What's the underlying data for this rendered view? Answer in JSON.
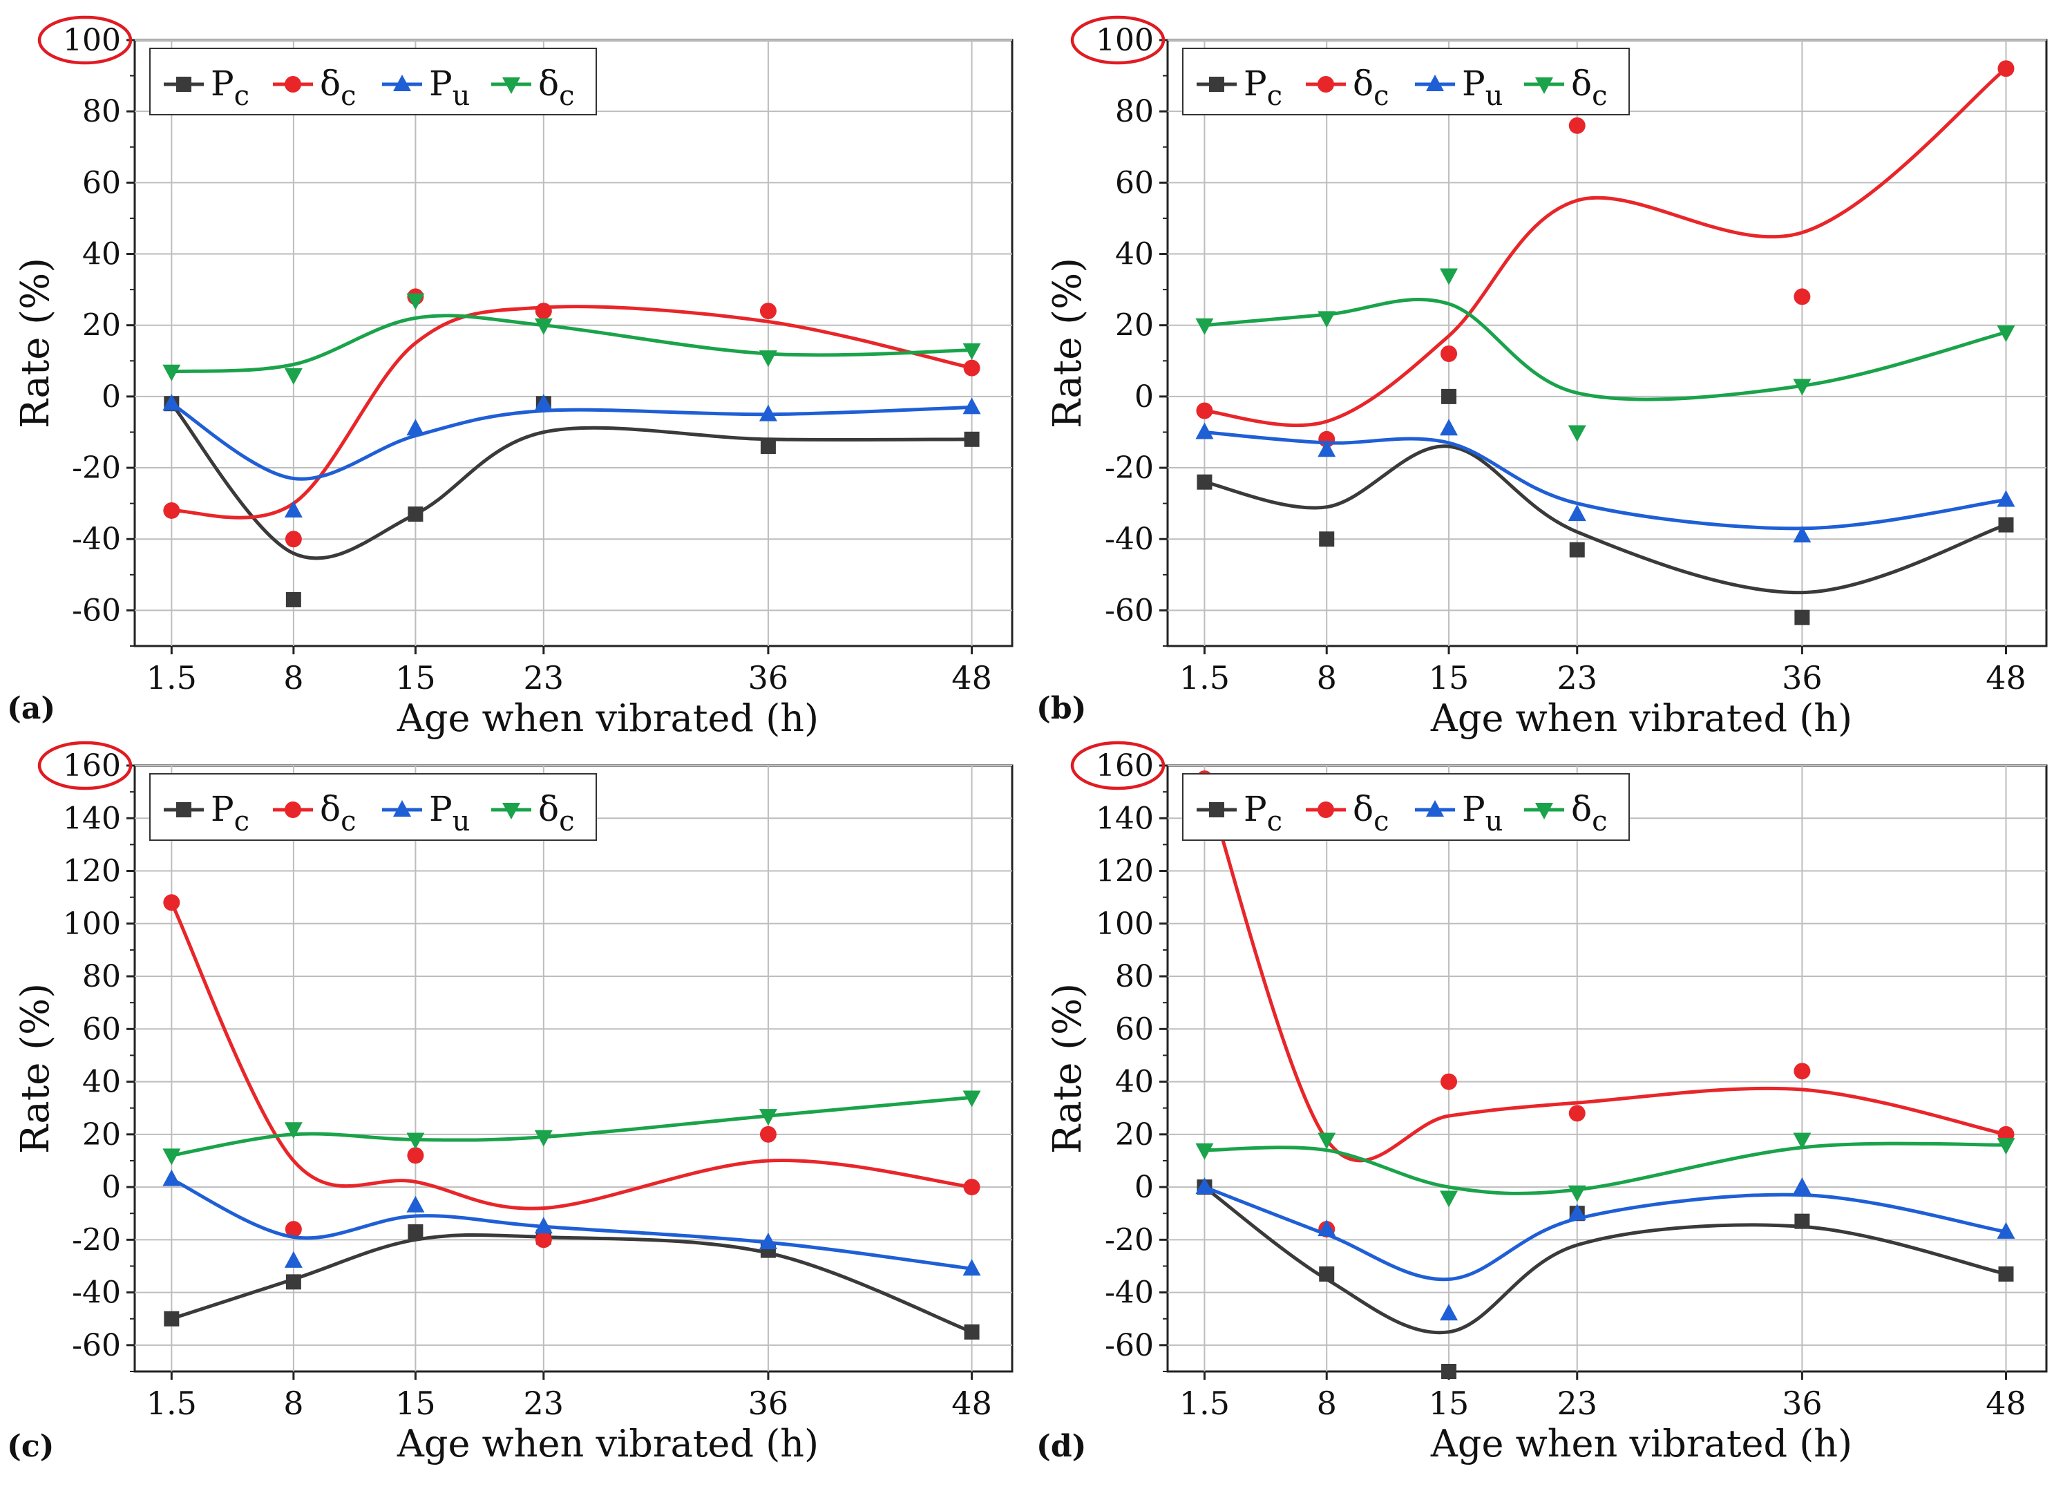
{
  "figure": {
    "description_label": "four-panel vibration rate figure"
  },
  "colors": {
    "Pc": "#3a3a3a",
    "delta_c_red": "#e8262a",
    "Pu": "#1f5fd6",
    "delta_c_green": "#1aa34a",
    "highlight": "#e11b22",
    "grid": "#bdbdbd"
  },
  "chart_data": [
    {
      "panel": "(a)",
      "type": "line",
      "xlabel": "Age when vibrated (h)",
      "ylabel": "Rate (%)",
      "x_categories": [
        "1.5",
        "8",
        "15",
        "23",
        "36",
        "48"
      ],
      "ylim": [
        -70,
        100
      ],
      "yticks": [
        -60,
        -40,
        -20,
        0,
        20,
        40,
        60,
        80,
        100
      ],
      "highlighted_tick": "100",
      "legend": [
        "P",
        "δ",
        "P",
        "δ"
      ],
      "legend_subscripts": [
        "c",
        "c",
        "u",
        "c"
      ],
      "series": [
        {
          "name": "Pc",
          "marker": "square",
          "color": "#3a3a3a",
          "points": [
            -2,
            -57,
            -33,
            -2,
            -14,
            -12
          ],
          "curve": [
            -2,
            -44,
            -33,
            -10,
            -12,
            -12
          ]
        },
        {
          "name": "δc",
          "marker": "circle",
          "color": "#e8262a",
          "points": [
            -32,
            -40,
            28,
            24,
            24,
            8
          ],
          "curve": [
            -32,
            -30,
            15,
            25,
            21,
            8
          ]
        },
        {
          "name": "Pu",
          "marker": "triangle-up",
          "color": "#1f5fd6",
          "points": [
            -2,
            -32,
            -9,
            -2,
            -5,
            -3
          ],
          "curve": [
            -2,
            -23,
            -11,
            -4,
            -5,
            -3
          ]
        },
        {
          "name": "δc",
          "marker": "triangle-down",
          "color": "#1aa34a",
          "points": [
            7,
            6,
            27,
            20,
            11,
            13
          ],
          "curve": [
            7,
            9,
            22,
            20,
            12,
            13
          ]
        }
      ]
    },
    {
      "panel": "(b)",
      "type": "line",
      "xlabel": "Age when vibrated (h)",
      "ylabel": "Rate (%)",
      "x_categories": [
        "1.5",
        "8",
        "15",
        "23",
        "36",
        "48"
      ],
      "ylim": [
        -70,
        100
      ],
      "yticks": [
        -60,
        -40,
        -20,
        0,
        20,
        40,
        60,
        80,
        100
      ],
      "highlighted_tick": "100",
      "legend": [
        "P",
        "δ",
        "P",
        "δ"
      ],
      "legend_subscripts": [
        "c",
        "c",
        "u",
        "c"
      ],
      "series": [
        {
          "name": "Pc",
          "marker": "square",
          "color": "#3a3a3a",
          "points": [
            -24,
            -40,
            0,
            -43,
            -62,
            -36
          ],
          "curve": [
            -24,
            -31,
            -14,
            -38,
            -55,
            -36
          ]
        },
        {
          "name": "δc",
          "marker": "circle",
          "color": "#e8262a",
          "points": [
            -4,
            -12,
            12,
            76,
            28,
            92
          ],
          "curve": [
            -4,
            -7,
            17,
            55,
            46,
            92
          ]
        },
        {
          "name": "Pu",
          "marker": "triangle-up",
          "color": "#1f5fd6",
          "points": [
            -10,
            -15,
            -9,
            -33,
            -39,
            -29
          ],
          "curve": [
            -10,
            -13,
            -13,
            -30,
            -37,
            -29
          ]
        },
        {
          "name": "δc",
          "marker": "triangle-down",
          "color": "#1aa34a",
          "points": [
            20,
            22,
            34,
            -10,
            3,
            18
          ],
          "curve": [
            20,
            23,
            26,
            1,
            3,
            18
          ]
        }
      ]
    },
    {
      "panel": "(c)",
      "type": "line",
      "xlabel": "Age when vibrated (h)",
      "ylabel": "Rate (%)",
      "x_categories": [
        "1.5",
        "8",
        "15",
        "23",
        "36",
        "48"
      ],
      "ylim": [
        -70,
        160
      ],
      "yticks": [
        -60,
        -40,
        -20,
        0,
        20,
        40,
        60,
        80,
        100,
        120,
        140,
        160
      ],
      "highlighted_tick": "160",
      "legend": [
        "P",
        "δ",
        "P",
        "δ"
      ],
      "legend_subscripts": [
        "c",
        "c",
        "u",
        "c"
      ],
      "series": [
        {
          "name": "Pc",
          "marker": "square",
          "color": "#3a3a3a",
          "points": [
            -50,
            -36,
            -17,
            -19,
            -24,
            -55
          ],
          "curve": [
            -50,
            -35,
            -20,
            -19,
            -25,
            -55
          ]
        },
        {
          "name": "δc",
          "marker": "circle",
          "color": "#e8262a",
          "points": [
            108,
            -16,
            12,
            -20,
            20,
            0
          ],
          "curve": [
            108,
            10,
            2,
            -8,
            10,
            0
          ]
        },
        {
          "name": "Pu",
          "marker": "triangle-up",
          "color": "#1f5fd6",
          "points": [
            3,
            -28,
            -7,
            -15,
            -21,
            -31
          ],
          "curve": [
            3,
            -19,
            -11,
            -15,
            -21,
            -31
          ]
        },
        {
          "name": "δc",
          "marker": "triangle-down",
          "color": "#1aa34a",
          "points": [
            12,
            22,
            18,
            19,
            27,
            34
          ],
          "curve": [
            12,
            20,
            18,
            19,
            27,
            34
          ]
        }
      ]
    },
    {
      "panel": "(d)",
      "type": "line",
      "xlabel": "Age when vibrated (h)",
      "ylabel": "Rate (%)",
      "x_categories": [
        "1.5",
        "8",
        "15",
        "23",
        "36",
        "48"
      ],
      "ylim": [
        -70,
        160
      ],
      "yticks": [
        -60,
        -40,
        -20,
        0,
        20,
        40,
        60,
        80,
        100,
        120,
        140,
        160
      ],
      "highlighted_tick": "160",
      "legend": [
        "P",
        "δ",
        "P",
        "δ"
      ],
      "legend_subscripts": [
        "c",
        "c",
        "u",
        "c"
      ],
      "series": [
        {
          "name": "Pc",
          "marker": "square",
          "color": "#3a3a3a",
          "points": [
            0,
            -33,
            -70,
            -10,
            -13,
            -33
          ],
          "curve": [
            0,
            -35,
            -55,
            -22,
            -15,
            -33
          ]
        },
        {
          "name": "δc",
          "marker": "circle",
          "color": "#e8262a",
          "points": [
            155,
            -16,
            40,
            28,
            44,
            20
          ],
          "curve": [
            155,
            18,
            27,
            32,
            37,
            20
          ]
        },
        {
          "name": "Pu",
          "marker": "triangle-up",
          "color": "#1f5fd6",
          "points": [
            0,
            -16,
            -48,
            -10,
            0,
            -17
          ],
          "curve": [
            0,
            -18,
            -35,
            -12,
            -3,
            -17
          ]
        },
        {
          "name": "δc",
          "marker": "triangle-down",
          "color": "#1aa34a",
          "points": [
            14,
            18,
            -4,
            -2,
            18,
            16
          ],
          "curve": [
            14,
            14,
            0,
            -1,
            15,
            16
          ]
        }
      ]
    }
  ]
}
